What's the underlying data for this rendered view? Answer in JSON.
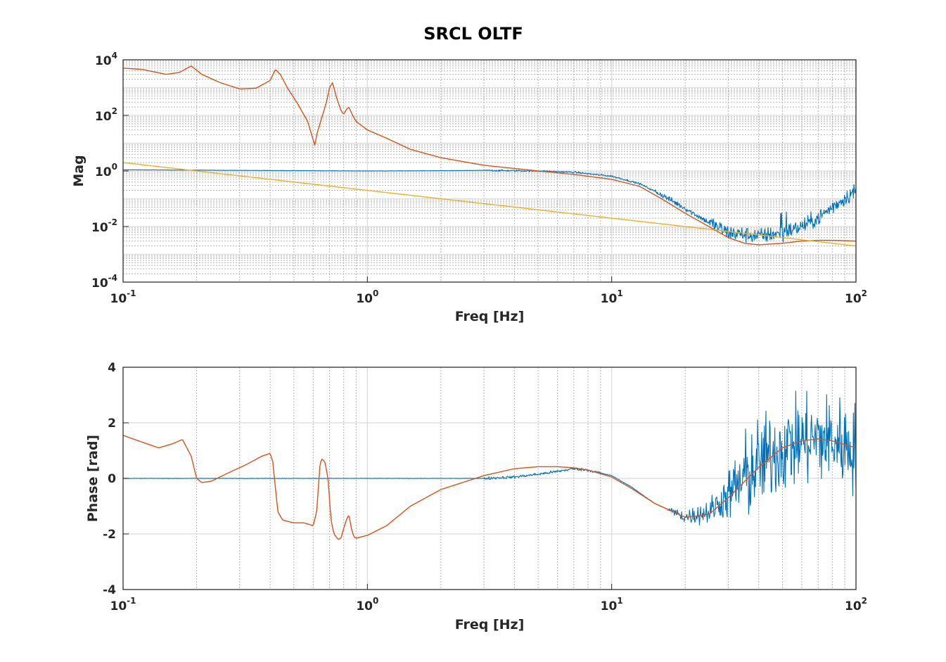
{
  "chart_data": [
    {
      "type": "line",
      "title": "SRCL OLTF",
      "xlabel": "Freq [Hz]",
      "ylabel": "Mag",
      "xscale": "log",
      "yscale": "log",
      "xlim": [
        0.1,
        100
      ],
      "ylim": [
        0.0001,
        10000
      ],
      "grid": true,
      "legend": "none",
      "xticks": [
        {
          "base": "10",
          "exp": "-1",
          "value": 0.1
        },
        {
          "base": "10",
          "exp": "0",
          "value": 1
        },
        {
          "base": "10",
          "exp": "1",
          "value": 10
        },
        {
          "base": "10",
          "exp": "2",
          "value": 100
        }
      ],
      "yticks": [
        {
          "base": "10",
          "exp": "4",
          "value": 10000
        },
        {
          "base": "10",
          "exp": "2",
          "value": 100
        },
        {
          "base": "10",
          "exp": "0",
          "value": 1
        },
        {
          "base": "10",
          "exp": "-2",
          "value": 0.01
        },
        {
          "base": "10",
          "exp": "-4",
          "value": 0.0001
        }
      ],
      "series": [
        {
          "color": "#0072BD",
          "noisy": true,
          "x": [
            0.1,
            0.3,
            1,
            2,
            3,
            5,
            7,
            10,
            13,
            16,
            20,
            25,
            30,
            40,
            50,
            60,
            70,
            80,
            100
          ],
          "y": [
            1.1,
            1.05,
            1.0,
            1.02,
            1.05,
            1.0,
            0.9,
            0.65,
            0.35,
            0.14,
            0.045,
            0.014,
            0.006,
            0.0045,
            0.006,
            0.01,
            0.02,
            0.05,
            0.2
          ]
        },
        {
          "color": "#D95319",
          "noisy": false,
          "x": [
            0.1,
            0.12,
            0.15,
            0.17,
            0.19,
            0.21,
            0.25,
            0.3,
            0.35,
            0.4,
            0.42,
            0.44,
            0.47,
            0.52,
            0.57,
            0.61,
            0.62,
            0.65,
            0.68,
            0.7,
            0.72,
            0.75,
            0.78,
            0.8,
            0.82,
            0.84,
            0.87,
            0.9,
            1,
            1.2,
            1.5,
            2,
            3,
            5,
            7,
            10,
            13,
            16,
            20,
            25,
            30,
            35,
            40,
            50,
            60,
            70,
            80,
            100
          ],
          "y": [
            5000,
            4500,
            3000,
            3500,
            6000,
            3000,
            1500,
            900,
            950,
            1800,
            4500,
            3000,
            1000,
            250,
            60,
            8,
            20,
            80,
            300,
            1000,
            1500,
            400,
            150,
            110,
            160,
            200,
            100,
            60,
            30,
            15,
            6,
            3,
            1.6,
            1.0,
            0.75,
            0.5,
            0.28,
            0.1,
            0.03,
            0.01,
            0.004,
            0.0025,
            0.0022,
            0.0025,
            0.003,
            0.0032,
            0.0032,
            0.003
          ]
        },
        {
          "color": "#EDB120",
          "noisy": false,
          "x": [
            0.1,
            100
          ],
          "y": [
            2.0,
            0.002
          ]
        }
      ]
    },
    {
      "type": "line",
      "title": "",
      "xlabel": "Freq [Hz]",
      "ylabel": "Phase [rad]",
      "xscale": "log",
      "yscale": "linear",
      "xlim": [
        0.1,
        100
      ],
      "ylim": [
        -4,
        4
      ],
      "grid": true,
      "legend": "none",
      "xticks": [
        {
          "base": "10",
          "exp": "-1",
          "value": 0.1
        },
        {
          "base": "10",
          "exp": "0",
          "value": 1
        },
        {
          "base": "10",
          "exp": "1",
          "value": 10
        },
        {
          "base": "10",
          "exp": "2",
          "value": 100
        }
      ],
      "yticks": [
        {
          "label": "4",
          "value": 4
        },
        {
          "label": "2",
          "value": 2
        },
        {
          "label": "0",
          "value": 0
        },
        {
          "label": "-2",
          "value": -2
        },
        {
          "label": "-4",
          "value": -4
        }
      ],
      "series": [
        {
          "color": "#0072BD",
          "noisy": true,
          "x": [
            0.1,
            0.3,
            1,
            2,
            3,
            4,
            5,
            6,
            7,
            8,
            10,
            12,
            15,
            20,
            25,
            30,
            40,
            50,
            60,
            70,
            80,
            100
          ],
          "y": [
            0.0,
            0.0,
            0.0,
            0.0,
            0.0,
            0.05,
            0.15,
            0.25,
            0.35,
            0.3,
            0.1,
            -0.3,
            -0.9,
            -1.4,
            -1.2,
            -0.6,
            0.5,
            1.1,
            1.35,
            1.4,
            1.35,
            1.1
          ]
        },
        {
          "color": "#D95319",
          "noisy": false,
          "x": [
            0.1,
            0.12,
            0.14,
            0.16,
            0.175,
            0.19,
            0.2,
            0.21,
            0.23,
            0.27,
            0.32,
            0.37,
            0.4,
            0.41,
            0.43,
            0.45,
            0.5,
            0.55,
            0.6,
            0.62,
            0.64,
            0.65,
            0.67,
            0.69,
            0.71,
            0.73,
            0.76,
            0.78,
            0.8,
            0.82,
            0.84,
            0.86,
            0.88,
            0.9,
            1,
            1.2,
            1.5,
            2,
            3,
            4,
            5,
            6,
            7,
            8,
            10,
            12,
            15,
            20,
            25,
            30,
            40,
            50,
            60,
            70,
            80,
            100
          ],
          "y": [
            1.55,
            1.3,
            1.1,
            1.25,
            1.4,
            0.8,
            0.0,
            -0.15,
            -0.1,
            0.2,
            0.5,
            0.8,
            0.9,
            0.6,
            -1.2,
            -1.5,
            -1.6,
            -1.6,
            -1.7,
            -1.2,
            0.5,
            0.7,
            0.6,
            0.0,
            -1.5,
            -2.0,
            -2.2,
            -2.15,
            -1.8,
            -1.5,
            -1.3,
            -1.8,
            -2.1,
            -2.15,
            -2.05,
            -1.7,
            -1.0,
            -0.4,
            0.1,
            0.35,
            0.42,
            0.42,
            0.38,
            0.3,
            0.05,
            -0.35,
            -0.9,
            -1.4,
            -1.3,
            -0.7,
            0.4,
            1.1,
            1.35,
            1.42,
            1.35,
            1.1
          ]
        }
      ]
    }
  ]
}
